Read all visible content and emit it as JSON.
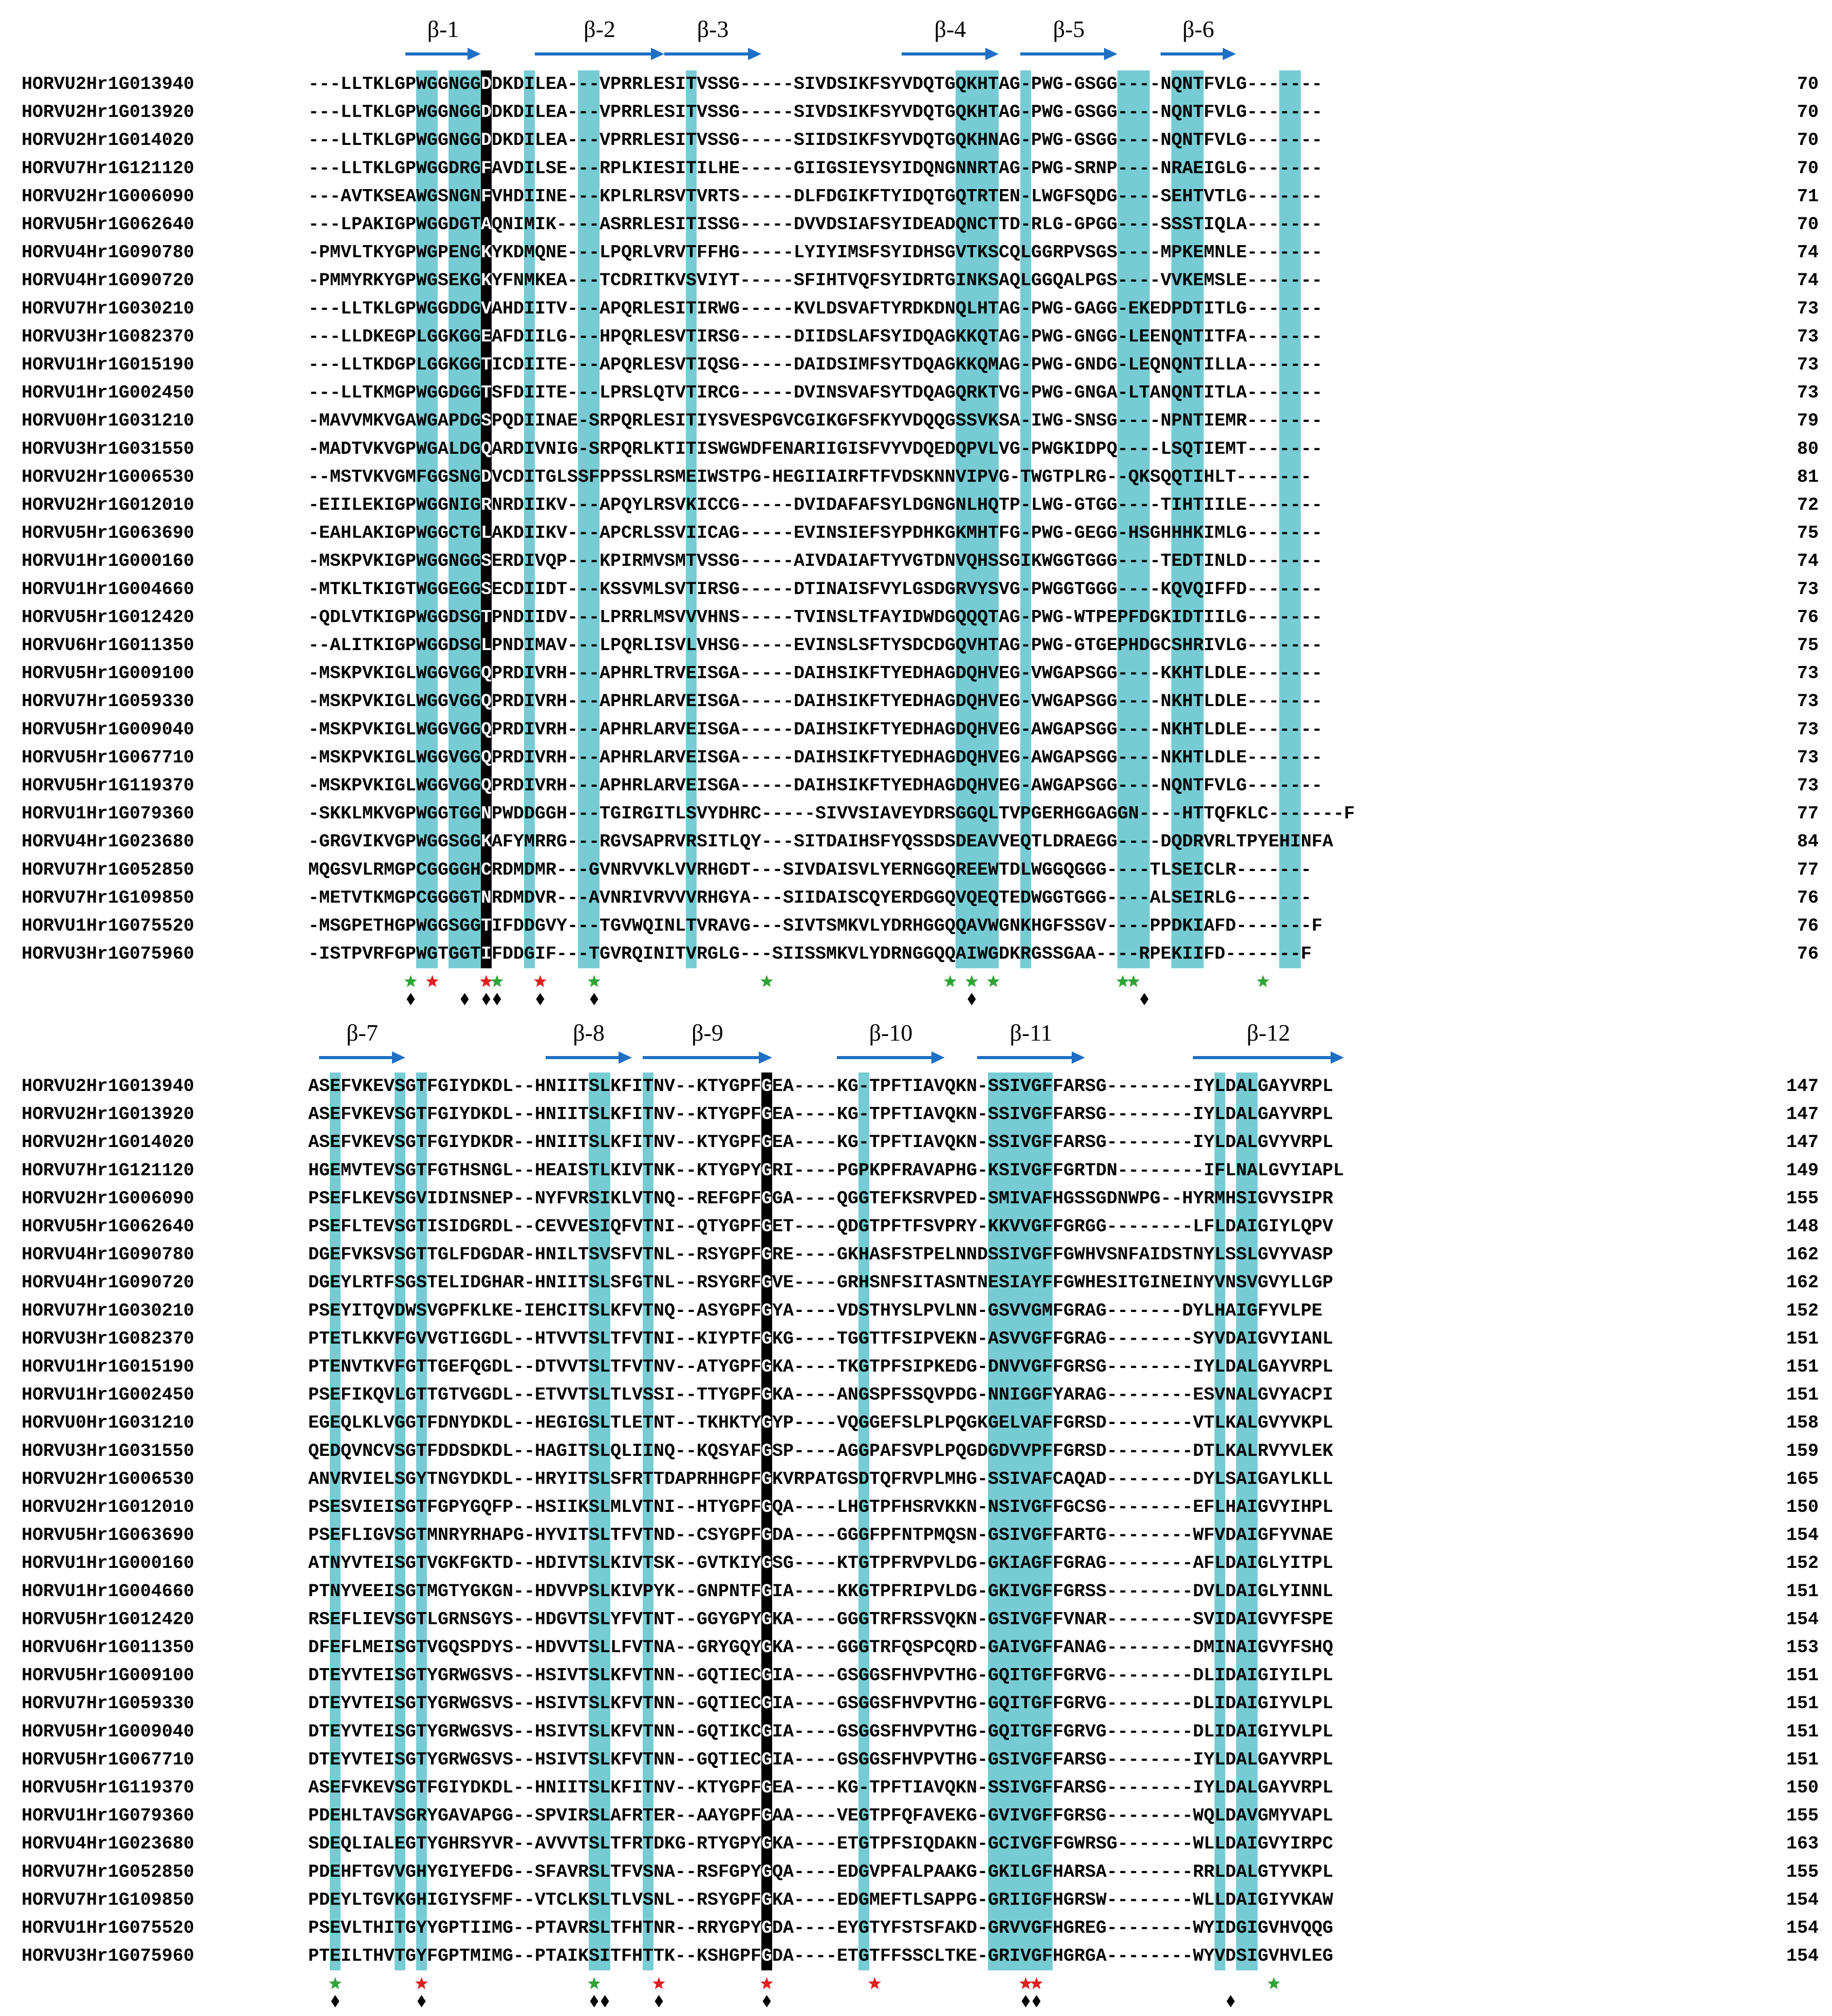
{
  "colors": {
    "conserved": "#5fc3cc",
    "invariant": "#000000",
    "arrow": "#1f6fc4",
    "star_green": "#2fa336",
    "star_red": "#e02020"
  },
  "blocks": [
    {
      "strands": [
        {
          "label": "β-1",
          "start": 9,
          "end": 16
        },
        {
          "label": "β-2",
          "start": 21,
          "end": 33
        },
        {
          "label": "β-3",
          "start": 33,
          "end": 42
        },
        {
          "label": "β-4",
          "start": 55,
          "end": 64
        },
        {
          "label": "β-5",
          "start": 66,
          "end": 75
        },
        {
          "label": "β-6",
          "start": 79,
          "end": 86
        }
      ],
      "highlight_columns": [
        10,
        11,
        13,
        14,
        15,
        20,
        25,
        26,
        35,
        60,
        61,
        62,
        63,
        66,
        75,
        76,
        77,
        80,
        81,
        82,
        90,
        91
      ],
      "invariant_columns": [
        16
      ],
      "rows": [
        {
          "name": "HORVU2Hr1G013940",
          "seq": "---LLTKLGPWGGNGGDDKDILEA---VPRRLESITVSSG-----SIVDSIKFSYVDQTGQKHTAG-PWG-GSGG----NQNTFVLG-------",
          "num": "70"
        },
        {
          "name": "HORVU2Hr1G013920",
          "seq": "---LLTKLGPWGGNGGDDKDILEA---VPRRLESITVSSG-----SIVDSIKFSYVDQTGQKHTAG-PWG-GSGG----NQNTFVLG-------",
          "num": "70"
        },
        {
          "name": "HORVU2Hr1G014020",
          "seq": "---LLTKLGPWGGNGGDDKDILEA---VPRRLESITVSSG-----SIIDSIKFSYVDQTGQKHNAG-PWG-GSGG----NQNTFVLG-------",
          "num": "70"
        },
        {
          "name": "HORVU7Hr1G121120",
          "seq": "---LLTKLGPWGGDRGFAVDILSE---RPLKIESITILHE-----GIIGSIEYSYIDQNGNNRTAG-PWG-SRNP----NRAEIGLG-------",
          "num": "70"
        },
        {
          "name": "HORVU2Hr1G006090",
          "seq": "---AVTKSEAWGSNGNFVHDIINE---KPLRLRSVTVRTS-----DLFDGIKFTYIDQTGQTRTEN-LWGFSQDG----SEHTVTLG-------",
          "num": "71"
        },
        {
          "name": "HORVU5Hr1G062640",
          "seq": "---LPAKIGPWGGDGTAQNIMIK----ASRRLESITISSG-----DVVDSIAFSYIDEADQNCTTD-RLG-GPGG----SSSTIQLA-------",
          "num": "70"
        },
        {
          "name": "HORVU4Hr1G090780",
          "seq": "-PMVLTKYGPWGPENGKYKDMQNE---LPQRLVRVTFFHG-----LYIYIMSFSYIDHSGVTKSCQLGGRPVSGS----MPKEMNLE-------",
          "num": "74"
        },
        {
          "name": "HORVU4Hr1G090720",
          "seq": "-PMMYRKYGPWGSEKGKYFNMKEA---TCDRITKVSVIYT-----SFIHTVQFSYIDRTGINKSAQLGGQALPGS----VVKEMSLE-------",
          "num": "74"
        },
        {
          "name": "HORVU7Hr1G030210",
          "seq": "---LLTKLGPWGGDDGVAHDIITV---APQRLESITIRWG-----KVLDSVAFTYRDKDNQLHTAG-PWG-GAGG-EKEDPDTITLG-------",
          "num": "73"
        },
        {
          "name": "HORVU3Hr1G082370",
          "seq": "---LLDKEGPLGGKGGEAFDIILG---HPQRLESVTIRSG-----DIIDSLAFSYIDQAGKKQTAG-PWG-GNGG-LEENQNTITFA-------",
          "num": "73"
        },
        {
          "name": "HORVU1Hr1G015190",
          "seq": "---LLTKDGPLGGKGGTICDIITE---APQRLESVTIQSG-----DAIDSIMFSYTDQAGKKQMAG-PWG-GNDG-LEQNQNTILLA-------",
          "num": "73"
        },
        {
          "name": "HORVU1Hr1G002450",
          "seq": "---LLTKMGPWGGDGGTSFDIITE---LPRSLQTVTIRCG-----DVINSVAFSYTDQAGQRKTVG-PWG-GNGA-LTANQNTITLA-------",
          "num": "73"
        },
        {
          "name": "HORVU0Hr1G031210",
          "seq": "-MAVVMKVGAWGAPDGSPQDIINAE-SRPQRLESITIYSVESPGVCGIKGFSFKYVDQQGSSVKSA-IWG-SNSG----NPNTIEMR-------",
          "num": "79"
        },
        {
          "name": "HORVU3Hr1G031550",
          "seq": "-MADTVKVGPWGALDGQARDIVNIG-SRPQRLKTITISWGWDFENARIIGISFVYVDQEDQPVLVG-PWGKIDPQ----LSQTIEMT-------",
          "num": "80"
        },
        {
          "name": "HORVU2Hr1G006530",
          "seq": "--MSTVKVGMFGGSNGDVCDITGLSSFPPSSLRSMEIWSTPG-HEGIIAIRFTFVDSKNNVIPVG-TWGTPLRG--QKSQQTIHLT-------",
          "num": "81"
        },
        {
          "name": "HORVU2Hr1G012010",
          "seq": "-EIILEKIGPWGGNIGRNRDIIKV---APQYLRSVKICCG-----DVIDAFAFSYLDGNGNLHQTP-LWG-GTGG----TIHTIILE-------",
          "num": "72"
        },
        {
          "name": "HORVU5Hr1G063690",
          "seq": "-EAHLAKIGPWGGCTGLAKDIIKV---APCRLSSVIICAG-----EVINSIEFSYPDHKGKMHTFG-PWG-GEGG-HSGHHHKIMLG-------",
          "num": "75"
        },
        {
          "name": "HORVU1Hr1G000160",
          "seq": "-MSKPVKIGPWGGNGGSERDIVQP---KPIRMVSMTVSSG-----AIVDAIAFTYVGTDNVQHSSGIKWGGTGGG----TEDTINLD-------",
          "num": "74"
        },
        {
          "name": "HORVU1Hr1G004660",
          "seq": "-MTKLTKIGTWGGEGGSECDIIDT---KSSVMLSVTIRSG-----DTINAISFVYLGSDGRVYSVG-PWGGTGGG----KQVQIFFD-------",
          "num": "73"
        },
        {
          "name": "HORVU5Hr1G012420",
          "seq": "-QDLVTKIGPWGGDSGTPNDIIDV---LPRRLMSVVVHNS-----TVINSLTFAYIDWDGQQQTAG-PWG-WTPEPFDGKIDTIILG-------",
          "num": "76"
        },
        {
          "name": "HORVU6Hr1G011350",
          "seq": "--ALITKIGPWGGDSGLPNDIMAV---LPQRLISVLVHSG-----EVINSLSFTYSDCDGQVHTAG-PWG-GTGEPHDGCSHRIVLG-------",
          "num": "75"
        },
        {
          "name": "HORVU5Hr1G009100",
          "seq": "-MSKPVKIGLWGGVGGQPRDIVRH---APHRLTRVEISGA-----DAIHSIKFTYEDHAGDQHVEG-VWGAPSGG----KKHTLDLE-------",
          "num": "73"
        },
        {
          "name": "HORVU7Hr1G059330",
          "seq": "-MSKPVKIGLWGGVGGQPRDIVRH---APHRLARVEISGA-----DAIHSIKFTYEDHAGDQHVEG-VWGAPSGG----NKHTLDLE-------",
          "num": "73"
        },
        {
          "name": "HORVU5Hr1G009040",
          "seq": "-MSKPVKIGLWGGVGGQPRDIVRH---APHRLARVEISGA-----DAIHSIKFTYEDHAGDQHVEG-AWGAPSGG----NKHTLDLE-------",
          "num": "73"
        },
        {
          "name": "HORVU5Hr1G067710",
          "seq": "-MSKPVKIGLWGGVGGQPRDIVRH---APHRLARVEISGA-----DAIHSIKFTYEDHAGDQHVEG-AWGAPSGG----NKHTLDLE-------",
          "num": "73"
        },
        {
          "name": "HORVU5Hr1G119370",
          "seq": "-MSKPVKIGLWGGVGGQPRDIVRH---APHRLARVEISGA-----DAIHSIKFTYEDHAGDQHVEG-AWGAPSGG----NQNTFVLG-------",
          "num": "73"
        },
        {
          "name": "HORVU1Hr1G079360",
          "seq": "-SKKLMKVGPWGGTGGNPWDDGGH---TGIRGITLSVYDHRC-----SIVVSIAVEYDRSGGQLTVPGERHGGAGGN----HTTQFKLC-------F",
          "num": "77"
        },
        {
          "name": "HORVU4Hr1G023680",
          "seq": "-GRGVIKVGPWGGSGGKAFYMRRG---RGVSAPRVRSITLQY---SITDAIHSFYQSSDSDEAVVEQTLDRAEGG----DQDRVRLTPYEHINFA",
          "num": "84"
        },
        {
          "name": "HORVU7Hr1G052850",
          "seq": "MQGSVLRMGPCGGGGHCRDMDMR---GVNRVVKLVVRHGDT---SIVDAISVLYERNGGQREEWTDLWGGQGGG----TLSEICLR-------",
          "num": "77"
        },
        {
          "name": "HORVU7Hr1G109850",
          "seq": "-METVTKMGPCGGGGTNRDMDVR---AVNRIVRVVVRHGYA---SIIDAISCQYERDGGQVQEQTEDWGGTGGG----ALSEIRLG-------",
          "num": "76"
        },
        {
          "name": "HORVU1Hr1G075520",
          "seq": "-MSGPETHGPWGGSGGTIFDDGVY---TGVWQINLTVRAVG---SIVTSMKVLYDRHGGQQAVWGNKHGFSSGV----PPDKIAFD-------F",
          "num": "76"
        },
        {
          "name": "HORVU3Hr1G075960",
          "seq": "-ISTPVRFGPWGTGGTIFDDGIF---TGVRQINITVRGLG---SIISSMKVLYDRNGGQQAIWGDKRGSSGAA----RPEKIIFD-------F",
          "num": "76"
        }
      ],
      "markers": [
        {
          "type": "star-green",
          "col": 9
        },
        {
          "type": "star-red",
          "col": 11
        },
        {
          "type": "star-red",
          "col": 16
        },
        {
          "type": "star-green",
          "col": 17
        },
        {
          "type": "star-red",
          "col": 21
        },
        {
          "type": "star-green",
          "col": 26
        },
        {
          "type": "star-green",
          "col": 42
        },
        {
          "type": "star-green",
          "col": 59
        },
        {
          "type": "star-green",
          "col": 61
        },
        {
          "type": "star-green",
          "col": 63
        },
        {
          "type": "star-green",
          "col": 75
        },
        {
          "type": "star-green",
          "col": 76
        },
        {
          "type": "star-green",
          "col": 88
        },
        {
          "type": "diamond",
          "col": 9
        },
        {
          "type": "diamond",
          "col": 14
        },
        {
          "type": "diamond",
          "col": 16
        },
        {
          "type": "diamond",
          "col": 17
        },
        {
          "type": "diamond",
          "col": 21
        },
        {
          "type": "diamond",
          "col": 26
        },
        {
          "type": "diamond",
          "col": 61
        },
        {
          "type": "diamond",
          "col": 77
        }
      ]
    },
    {
      "strands": [
        {
          "label": "β-7",
          "start": 1,
          "end": 9
        },
        {
          "label": "β-8",
          "start": 22,
          "end": 30
        },
        {
          "label": "β-9",
          "start": 31,
          "end": 43
        },
        {
          "label": "β-10",
          "start": 49,
          "end": 59
        },
        {
          "label": "β-11",
          "start": 62,
          "end": 72
        },
        {
          "label": "β-12",
          "start": 82,
          "end": 96
        }
      ],
      "highlight_columns": [
        2,
        8,
        10,
        26,
        27,
        31,
        42,
        51,
        63,
        64,
        65,
        66,
        67,
        68,
        84,
        86,
        87
      ],
      "invariant_columns": [
        42
      ],
      "rows": [
        {
          "name": "HORVU2Hr1G013940",
          "seq": "ASEFVKEVSGTFGIYDKDL--HNIITSLKFITNV--KTYGPFGEA----KG-TPFTIAVQKN-SSIVGFFARSG--------IYLDALGAYVRPL",
          "num": "147"
        },
        {
          "name": "HORVU2Hr1G013920",
          "seq": "ASEFVKEVSGTFGIYDKDL--HNIITSLKFITNV--KTYGPFGEA----KG-TPFTIAVQKN-SSIVGFFARSG--------IYLDALGAYVRPL",
          "num": "147"
        },
        {
          "name": "HORVU2Hr1G014020",
          "seq": "ASEFVKEVSGTFGIYDKDR--HNIITSLKFITNV--KTYGPFGEA----KG-TPFTIAVQKN-SSIVGFFARSG--------IYLDALGVYVRPL",
          "num": "147"
        },
        {
          "name": "HORVU7Hr1G121120",
          "seq": "HGEMVTEVSGTFGTHSNGL--HEAISTLKIVTNK--KTYGPYGRI----PGPKPFRAVAPHG-KSIVGFFGRTDN--------IFLNALGVYIAPL",
          "num": "149"
        },
        {
          "name": "HORVU2Hr1G006090",
          "seq": "PSEFLKEVSGVIDINSNEP--NYFVRSIKLVTNQ--REFGPFGGA----QGGTEFKSRVPED-SMIVAFHGSSGDNWPG--HYRMHSIGVYSIPR",
          "num": "155"
        },
        {
          "name": "HORVU5Hr1G062640",
          "seq": "PSEFLTEVSGTISIDGRDL--CEVVESIQFVTNI--QTYGPFGET----QDGTPFTFSVPRY-KKVVGFFGRGG--------LFLDAIGIYLQPV",
          "num": "148"
        },
        {
          "name": "HORVU4Hr1G090780",
          "seq": "DGEFVKSVSGTTGLFDGDAR-HNILTSVSFVTNL--RSYGPFGRE----GKHASFSTPELNNDSSIVGFFGWHVSNFAIDSTNYLSSLGVYVASP",
          "num": "162"
        },
        {
          "name": "HORVU4Hr1G090720",
          "seq": "DGEYLRTFSGSTELIDGHAR-HNIITSLSFGTNL--RSYGRFGVE----GRHSNFSITASNTNESIAYFFGWHESITGINEINYVNSVGVYLLGP",
          "num": "162"
        },
        {
          "name": "HORVU7Hr1G030210",
          "seq": "PSEYITQVDWSVGPFKLKE-IEHCITSLKFVTNQ--ASYGPFGYA----VDSTHYSLPVLNN-GSVVGMFGRAG-------DYLHAIGFYVLPE",
          "num": "152"
        },
        {
          "name": "HORVU3Hr1G082370",
          "seq": "PTETLKKVFGVVGTIGGDL--HTVVTSLTFVTNI--KIYPTFGKG----TGGTTFSIPVEKN-ASVVGFFGRAG--------SYVDAIGVYIANL",
          "num": "151"
        },
        {
          "name": "HORVU1Hr1G015190",
          "seq": "PTENVTKVFGTTGEFQGDL--DTVVTSLTFVTNV--ATYGPFGKA----TKGTPFSIPKEDG-DNVVGFFGRSG--------IYLDALGAYVRPL",
          "num": "151"
        },
        {
          "name": "HORVU1Hr1G002450",
          "seq": "PSEFIKQVLGTTGTVGGDL--ETVVTSLTLVSSI--TTYGPFGKA----ANGSPFSSQVPDG-NNIGGFYARAG--------ESVNALGVYACPI",
          "num": "151"
        },
        {
          "name": "HORVU0Hr1G031210",
          "seq": "EGEQLKLVGGTFDNYDKDL--HEGIGSLTLETNT--TKHKTYGYP----VQGGEFSLPLPQGKGELVAFFGRSD--------VTLKALGVYVKPL",
          "num": "158"
        },
        {
          "name": "HORVU3Hr1G031550",
          "seq": "QEDQVNCVSGTFDDSDKDL--HAGITSLQLIINQ--KQSYAFGSP----AGGPAFSVPLPQGDGDVVPFFGRSD--------DTLKALRVYVLEK",
          "num": "159"
        },
        {
          "name": "HORVU2Hr1G006530",
          "seq": "ANVRVIELSGYTNGYDKDL--HRYITSLSFRTTDAPRHHGPFGKVRPATGSDTQFRVPLMHG-SSIVAFCAQAD--------DYLSAIGAYLKLL",
          "num": "165"
        },
        {
          "name": "HORVU2Hr1G012010",
          "seq": "PSESVIEISGTFGPYGQFP--HSIIKSLMLVTNI--HTYGPFGQA----LHGTPFHSRVKKN-NSIVGFFGCSG--------EFLHAIGVYIHPL",
          "num": "150"
        },
        {
          "name": "HORVU5Hr1G063690",
          "seq": "PSEFLIGVSGTMNRYRHAPG-HYVITSLTFVTND--CSYGPFGDA----GGGFPFNTPMQSN-GSIVGFFARTG--------WFVDAIGFYVNAE",
          "num": "154"
        },
        {
          "name": "HORVU1Hr1G000160",
          "seq": "ATNYVTEISGTVGKFGKTD--HDIVTSLKIVTSK--GVTKIYGSG----KTGTPFRVPVLDG-GKIAGFFGRAG--------AFLDAIGLYITPL",
          "num": "152"
        },
        {
          "name": "HORVU1Hr1G004660",
          "seq": "PTNYVEEISGTMGTYGKGN--HDVVPSLKIVPYK--GNPNTFGIA----KKGTPFRIPVLDG-GKIVGFFGRSS--------DVLDAIGLYINNL",
          "num": "151"
        },
        {
          "name": "HORVU5Hr1G012420",
          "seq": "RSEFLIEVSGTLGRNSGYS--HDGVTSLYFVTNT--GGYGPYGKA----GGGTRFRSSVQKN-GSIVGFFVNAR--------SVIDAIGVYFSPE",
          "num": "154"
        },
        {
          "name": "HORVU6Hr1G011350",
          "seq": "DFEFLMEISGTVGQSPDYS--HDVVTSLLFVTNA--GRYGQYGKA----GGGTRFQSPCQRD-GAIVGFFANAG--------DMINAIGVYFSHQ",
          "num": "153"
        },
        {
          "name": "HORVU5Hr1G009100",
          "seq": "DTEYVTEISGTYGRWGSVS--HSIVTSLKFVTNN--GQTIECGIA----GSGGSFHVPVTHG-GQITGFFGRVG--------DLIDAIGIYILPL",
          "num": "151"
        },
        {
          "name": "HORVU7Hr1G059330",
          "seq": "DTEYVTEISGTYGRWGSVS--HSIVTSLKFVTNN--GQTIECGIA----GSGGSFHVPVTHG-GQITGFFGRVG--------DLIDAIGIYVLPL",
          "num": "151"
        },
        {
          "name": "HORVU5Hr1G009040",
          "seq": "DTEYVTEISGTYGRWGSVS--HSIVTSLKFVTNN--GQTIKCGIA----GSGGSFHVPVTHG-GQITGFFGRVG--------DLIDAIGIYVLPL",
          "num": "151"
        },
        {
          "name": "HORVU5Hr1G067710",
          "seq": "DTEYVTEISGTYGRWGSVS--HSIVTSLKFVTNN--GQTIECGIA----GSGGSFHVPVTHG-GSIVGFFARSG--------IYLDALGAYVRPL",
          "num": "151"
        },
        {
          "name": "HORVU5Hr1G119370",
          "seq": "ASEFVKEVSGTFGIYDKDL--HNIITSLKFITNV--KTYGPFGEA----KG-TPFTIAVQKN-SSIVGFFARSG--------IYLDALGAYVRPL",
          "num": "150"
        },
        {
          "name": "HORVU1Hr1G079360",
          "seq": "PDEHLTAVSGRYGAVAPGG--SPVIRSLAFRTER--AAYGPFGAA----VEGTPFQFAVEKG-GVIVGFFGRSG--------WQLDAVGMYVAPL",
          "num": "155"
        },
        {
          "name": "HORVU4Hr1G023680",
          "seq": "SDEQLIALEGTYGHRSYVR--AVVVTSLTFRTDKG-RTYGPYGKA----ETGTPFSIQDAKN-GCIVGFFGWRSG-------WLLDAIGVYIRPC",
          "num": "163"
        },
        {
          "name": "HORVU7Hr1G052850",
          "seq": "PDEHFTGVVGHYGIYEFDG--SFAVRSLTFVSNA--RSFGPYGQA----EDGVPFALPAAKG-GKILGFHARSA--------RRLDALGTYVKPL",
          "num": "155"
        },
        {
          "name": "HORVU7Hr1G109850",
          "seq": "PDEYLTGVKGHIGIYSFMF--VTCLKSLTLVSNL--RSYGPFGKA----EDGMEFTLSAPPG-GRIIGFHGRSW--------WLLDAIGIYVKAW",
          "num": "154"
        },
        {
          "name": "HORVU1Hr1G075520",
          "seq": "PSEVLTHITGYYGPTIIMG--PTAVRSLTFHTNR--RRYGPYGDA----EYGTYFSTSFAKD-GRVVGFHGREG--------WYIDGIGVHVQQG",
          "num": "154"
        },
        {
          "name": "HORVU3Hr1G075960",
          "seq": "PTEILTHVTGYFGPTMIMG--PTAIKSITFHTTK--KSHGPFGDA----ETGTFFSSCLTKE-GRIVGFHGRGA--------WYVDSIGVHVLEG",
          "num": "154"
        }
      ],
      "markers": [
        {
          "type": "star-green",
          "col": 2
        },
        {
          "type": "star-red",
          "col": 10
        },
        {
          "type": "star-green",
          "col": 26
        },
        {
          "type": "star-red",
          "col": 32
        },
        {
          "type": "star-red",
          "col": 42
        },
        {
          "type": "star-red",
          "col": 52
        },
        {
          "type": "star-red",
          "col": 66
        },
        {
          "type": "star-red",
          "col": 67
        },
        {
          "type": "star-green",
          "col": 89
        },
        {
          "type": "diamond",
          "col": 2
        },
        {
          "type": "diamond",
          "col": 10
        },
        {
          "type": "diamond",
          "col": 26
        },
        {
          "type": "diamond",
          "col": 27
        },
        {
          "type": "diamond",
          "col": 32
        },
        {
          "type": "diamond",
          "col": 42
        },
        {
          "type": "diamond",
          "col": 66
        },
        {
          "type": "diamond",
          "col": 67
        },
        {
          "type": "diamond",
          "col": 85
        }
      ]
    }
  ]
}
